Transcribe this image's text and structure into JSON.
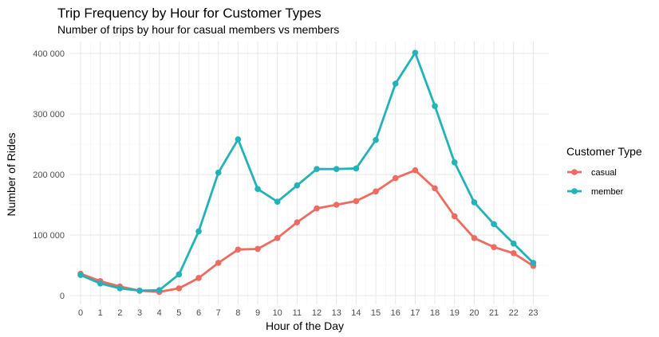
{
  "chart_data": {
    "type": "line",
    "title": "Trip Frequency by Hour for Customer Types",
    "subtitle": "Number of trips by hour for casual members vs members",
    "xlabel": "Hour of the Day",
    "ylabel": "Number of Rides",
    "x": [
      0,
      1,
      2,
      3,
      4,
      5,
      6,
      7,
      8,
      9,
      10,
      11,
      12,
      13,
      14,
      15,
      16,
      17,
      18,
      19,
      20,
      21,
      22,
      23
    ],
    "x_tick_labels": [
      "0",
      "1",
      "2",
      "3",
      "4",
      "5",
      "6",
      "7",
      "8",
      "9",
      "10",
      "11",
      "12",
      "13",
      "14",
      "15",
      "16",
      "17",
      "18",
      "19",
      "20",
      "21",
      "22",
      "23"
    ],
    "ylim": [
      0,
      400000
    ],
    "y_ticks": [
      0,
      100000,
      200000,
      300000,
      400000
    ],
    "y_tick_labels": [
      "0",
      "100 000",
      "200 000",
      "300 000",
      "400 000"
    ],
    "grid": true,
    "legend_title": "Customer Type",
    "legend_position": "right",
    "series": [
      {
        "name": "casual",
        "color": "#ee6b61",
        "values": [
          36000,
          24000,
          15000,
          8000,
          6000,
          12000,
          29000,
          54000,
          76000,
          77000,
          95000,
          121000,
          144000,
          150000,
          156000,
          172000,
          194000,
          207000,
          177000,
          131000,
          95000,
          80000,
          70000,
          49000
        ]
      },
      {
        "name": "member",
        "color": "#22b2b7",
        "values": [
          34000,
          20000,
          12000,
          8000,
          9000,
          35000,
          106000,
          203000,
          258000,
          176000,
          155000,
          182000,
          209000,
          209000,
          210000,
          257000,
          350000,
          401000,
          313000,
          220000,
          154000,
          118000,
          86000,
          54000
        ]
      }
    ]
  }
}
